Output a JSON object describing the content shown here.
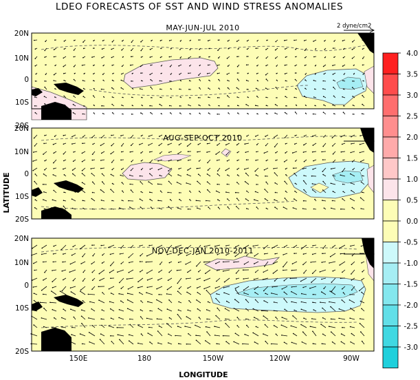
{
  "title": "LDEO FORECASTS OF SST AND WIND STRESS ANOMALIES",
  "y_axis_title": "LATITUDE",
  "x_axis_title": "LONGITUDE",
  "x_ticks": [
    "150E",
    "180",
    "150W",
    "120W",
    "90W"
  ],
  "y_ticks": [
    "20N",
    "10N",
    "0",
    "10S",
    "20S"
  ],
  "reference_vector_label": "2 dyne/cm2",
  "colors": {
    "background_zero": "#fdfdb6",
    "land": "#000000",
    "positive_light": "#fce4ea",
    "negative_light": "#cdf9fb",
    "negative_mid": "#a6eef4",
    "contour": "#555555"
  },
  "colorbar": {
    "labels": [
      "4.0",
      "3.5",
      "3.0",
      "2.5",
      "2.0",
      "1.5",
      "1.0",
      "0.5",
      "0.0",
      "-0.5",
      "-1.0",
      "-1.5",
      "-2.0",
      "-2.5",
      "-3.0"
    ],
    "colors": [
      "#ff2020",
      "#ff4c4c",
      "#ff6e6e",
      "#ff8e8e",
      "#ffaaaa",
      "#ffc8c8",
      "#fce4ea",
      "#fdfdb6",
      "#fdfdb6",
      "#cdf9fb",
      "#a6eef4",
      "#84e7ee",
      "#62dfe8",
      "#40d8e2",
      "#1fd0dc"
    ]
  },
  "panels": [
    {
      "title": "MAY-JUN-JUL 2010"
    },
    {
      "title": "AUG-SEP-OCT 2010"
    },
    {
      "title": "NOV-DEC-JAN 2010-2011"
    }
  ]
}
